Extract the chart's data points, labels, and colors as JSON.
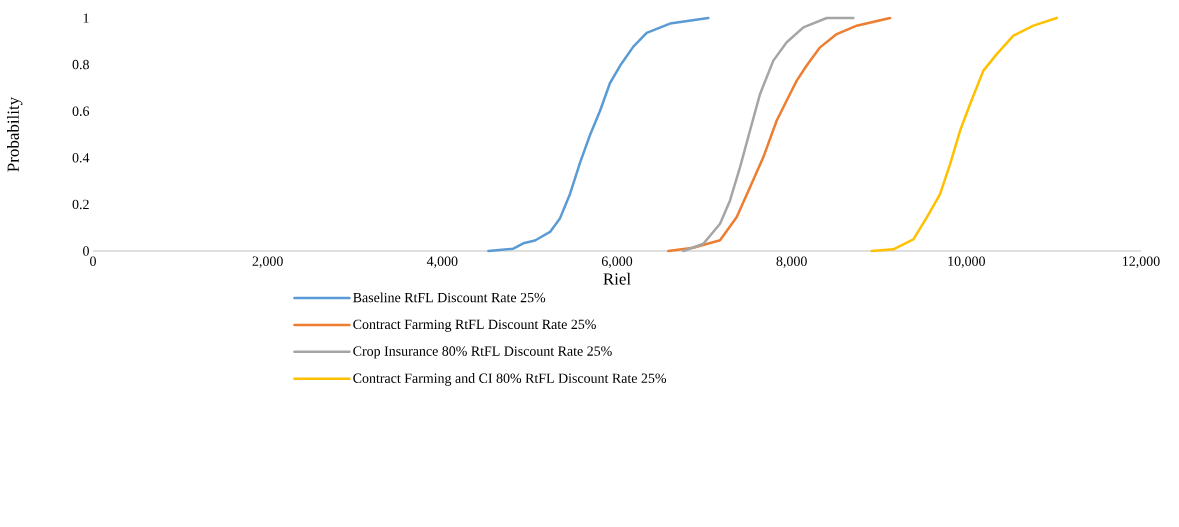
{
  "chart_data": {
    "type": "line",
    "xlabel": "Riel",
    "ylabel": "Probability",
    "xlim": [
      0,
      12000
    ],
    "ylim": [
      0,
      1
    ],
    "xticks": [
      0,
      {
        "value": 2000,
        "label": "2,000"
      },
      {
        "value": 4000,
        "label": "4,000"
      },
      {
        "value": 6000,
        "label": "6,000"
      },
      {
        "value": 8000,
        "label": "8,000"
      },
      {
        "value": 10000,
        "label": "10,000"
      },
      {
        "value": 12000,
        "label": "12,000"
      }
    ],
    "yticks": [
      0,
      0.2,
      0.4,
      0.6,
      0.8,
      1
    ],
    "grid": false,
    "legend": "bottom",
    "marker": "none",
    "line_style": "solid",
    "series": [
      {
        "name": "Baseline RtFL Discount Rate 25%",
        "color": "#5b9bd5",
        "x": [
          4527,
          4813,
          4928,
          5061,
          5233,
          5348,
          5462,
          5577,
          5691,
          5806,
          5920,
          6035,
          6187,
          6340,
          6607,
          7046
        ],
        "values": [
          0,
          0.01,
          0.033,
          0.045,
          0.082,
          0.141,
          0.245,
          0.379,
          0.498,
          0.602,
          0.721,
          0.795,
          0.877,
          0.936,
          0.976,
          1.0
        ]
      },
      {
        "name": "Contract Farming RtFL Discount Rate 25%",
        "color": "#ed7d31",
        "x": [
          6588,
          6874,
          7180,
          7371,
          7523,
          7676,
          7829,
          7943,
          8058,
          8172,
          8325,
          8516,
          8745,
          9126
        ],
        "values": [
          0,
          0.014,
          0.046,
          0.146,
          0.274,
          0.403,
          0.56,
          0.646,
          0.731,
          0.796,
          0.874,
          0.931,
          0.967,
          1.0
        ]
      },
      {
        "name": "Crop Insurance 80% RtFL Discount Rate 25%",
        "color": "#a5a5a5",
        "x": [
          6760,
          6989,
          7180,
          7294,
          7409,
          7523,
          7638,
          7790,
          7943,
          8134,
          8401,
          8706
        ],
        "values": [
          0,
          0.031,
          0.117,
          0.217,
          0.36,
          0.517,
          0.674,
          0.817,
          0.896,
          0.96,
          1.0,
          1.0
        ]
      },
      {
        "name": "Contract Farming and CI 80% RtFL Discount Rate 25%",
        "color": "#ffc000",
        "x": [
          8916,
          9164,
          9393,
          9546,
          9699,
          9813,
          9928,
          10042,
          10195,
          10348,
          10539,
          10768,
          11035
        ],
        "values": [
          0,
          0.007,
          0.05,
          0.143,
          0.244,
          0.372,
          0.516,
          0.63,
          0.774,
          0.845,
          0.924,
          0.967,
          1.0
        ]
      }
    ]
  }
}
